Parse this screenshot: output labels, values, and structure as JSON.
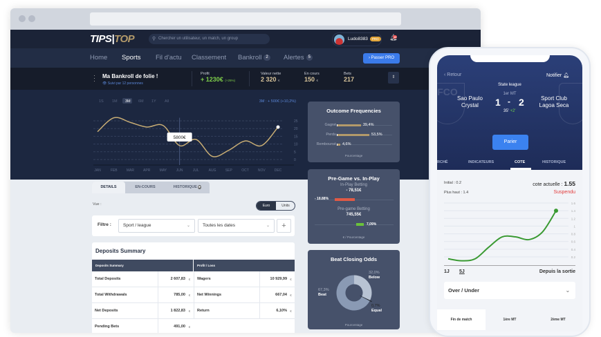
{
  "app": {
    "logo_left": "TIPS",
    "logo_right": "TOP",
    "search_placeholder": "Chercher un utilisateur, un match, un group",
    "username": "Ludo8383",
    "user_badge": "PRO",
    "notif_count": "10"
  },
  "nav": {
    "items": [
      {
        "label": "Home"
      },
      {
        "label": "Sports",
        "active": true
      },
      {
        "label": "Fil d'actu"
      },
      {
        "label": "Classement"
      },
      {
        "label": "Bankroll",
        "count": "2"
      },
      {
        "label": "Alertes",
        "count": "5"
      }
    ],
    "cta": "Passer PRO"
  },
  "bankroll": {
    "title": "Ma Bankroll de folie !",
    "followers": "Suivi par 12 personnes",
    "stats": [
      {
        "label": "Profit",
        "value": "+ 1230€",
        "extra": "(+25%)"
      },
      {
        "label": "Valeur nette",
        "value": "2 320",
        "extra": "€"
      },
      {
        "label": "En cours",
        "value": "150",
        "extra": "€"
      },
      {
        "label": "Bets",
        "value": "217",
        "extra": ""
      }
    ]
  },
  "chart_data": [
    {
      "type": "line",
      "periods": [
        "1S",
        "1M",
        "3M",
        "6M",
        "1Y",
        "All"
      ],
      "selected_period": "3M",
      "summary": "3M : +  500€ (+10,2%)",
      "tooltip": "5800€",
      "tooltip_at": "JUN",
      "categories": [
        "JAN",
        "FEB",
        "MAR",
        "APR",
        "MAY",
        "JUN",
        "JUL",
        "AUG",
        "SEP",
        "OCT",
        "NOV",
        "DEC"
      ],
      "values": [
        18,
        27,
        24,
        21,
        22,
        9,
        13,
        2,
        6,
        12,
        9,
        21
      ],
      "yticks": [
        0,
        5,
        10,
        15,
        20,
        25
      ],
      "ylim": [
        0,
        27
      ],
      "line_color": "#c8ad74",
      "grid": true
    },
    {
      "type": "bar",
      "title": "Outcome Frequencies",
      "categories": [
        "Gagné",
        "Perdu",
        "Remboursé"
      ],
      "values": [
        39.4,
        53.5,
        4.6
      ],
      "labels": [
        "39,4%",
        "53,5%",
        "4,6%"
      ],
      "xlabel": "Pourcentage",
      "color": "#b39a6a"
    },
    {
      "type": "bar",
      "title": "Pre-Game vs. In-Play",
      "series": [
        {
          "name": "In-Play Betting",
          "total": "- 78,51€",
          "value": -18.88,
          "label": "- 18,88%",
          "color": "#e05a45"
        },
        {
          "name": "Pre-game Betting",
          "total": "745,55€",
          "value": 7.09,
          "label": "7,09%",
          "color": "#6bc33a"
        }
      ],
      "xlabel": "€ / Pourcentage"
    },
    {
      "type": "pie",
      "title": "Beat Closing Odds",
      "categories": [
        "Beat",
        "Below",
        "Equal"
      ],
      "values": [
        67.3,
        32.0,
        0.7
      ],
      "labels": [
        "67,3%",
        "32,0%",
        "0,7%"
      ],
      "colors": [
        "#8a9ab4",
        "#b8c3d3",
        "#22262e"
      ],
      "xlabel": "Pourcentage"
    },
    {
      "type": "line",
      "yticks": [
        0.2,
        0.4,
        0.6,
        0.8,
        1.0,
        1.2,
        1.4,
        1.6
      ],
      "x": [
        0,
        1,
        2,
        3,
        4,
        5,
        6,
        7,
        8
      ],
      "values": [
        0.15,
        0.1,
        0.15,
        0.45,
        0.72,
        0.72,
        0.65,
        0.85,
        1.4
      ],
      "line_color": "#3a9a32"
    }
  ],
  "details": {
    "tabs": [
      "DETAILS",
      "EN-COURS",
      "HISTORIQUE"
    ],
    "vue_label": "Vue :",
    "toggle": [
      "Euro",
      "Units"
    ],
    "filter_label": "Filtre :",
    "sport_select": "Sport / league",
    "date_select": "Toutes les dates",
    "add": "+"
  },
  "deposits": {
    "title": "Deposits Summary",
    "headers": [
      "Deposits Summary",
      "Profit / Loss"
    ],
    "left": [
      {
        "k": "Total Deposits",
        "v": "2 607,83"
      },
      {
        "k": "Total Withdrawals",
        "v": "785,00"
      },
      {
        "k": "Net Deposits",
        "v": "1 822,83"
      },
      {
        "k": "Pending Bets",
        "v": "491,00"
      }
    ],
    "right": [
      {
        "k": "Wagers",
        "v": "10 929,99"
      },
      {
        "k": "Net Winnings",
        "v": "667,04"
      },
      {
        "k": "Return",
        "v": "6,10%"
      }
    ],
    "currency": "€"
  },
  "phone": {
    "back": "Retour",
    "notify": "Notifier",
    "league": "State league",
    "period": "1er MT",
    "home": "Sao Paulo Crystal",
    "away": "Sport Club Lagoa Seca",
    "score_home": "1",
    "score_sep": "-",
    "score_away": "2",
    "minute": "35'",
    "added": "+2'",
    "bet_button": "Parier",
    "tabs": [
      "RCHÉ",
      "INDICATEURS",
      "COTE",
      "HISTORIQUE"
    ],
    "active_tab": "COTE",
    "initial": "Initial : 0.2",
    "highest": "Plus haut : 1.4",
    "current_label": "cote actuelle :",
    "current_value": "1.55",
    "status": "Suspendu",
    "ranges": [
      "1J",
      "5J"
    ],
    "since": "Depuis la sortie",
    "market": "Over / Under",
    "bottom_tabs": [
      "Fin de match",
      "1ère MT",
      "2ème MT"
    ]
  }
}
